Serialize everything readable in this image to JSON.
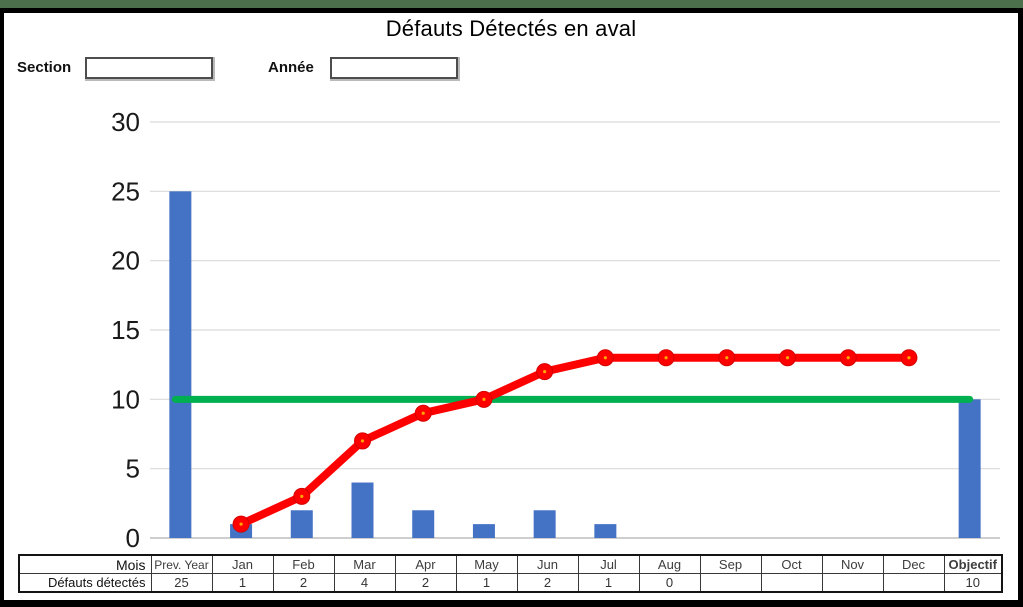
{
  "window": {
    "top_strip_color": "#4C6F4C",
    "frame_color": "#000000",
    "background": "#FFFFFF"
  },
  "title": "Défauts Détectés en aval",
  "controls": {
    "section_label": "Section",
    "section_value": "",
    "annee_label": "Année",
    "annee_value": ""
  },
  "chart_data": {
    "type": "combo",
    "title": "Défauts Détectés en aval",
    "categories": [
      "Prev. Year",
      "Jan",
      "Feb",
      "Mar",
      "Apr",
      "May",
      "Jun",
      "Jul",
      "Aug",
      "Sep",
      "Oct",
      "Nov",
      "Dec",
      "Objectif"
    ],
    "ylim": [
      0,
      30
    ],
    "ytick_step": 5,
    "grid": true,
    "legend": "none",
    "colors": {
      "bar": "#4472C4",
      "cumulative_line": "#FF0000",
      "marker_center": "#FFB700",
      "objective_line": "#00B050",
      "gridline": "#D9D9D9",
      "axis_text": "#1A1A1A"
    },
    "series": [
      {
        "name": "Défauts détectés",
        "type": "bar",
        "values": [
          25,
          1,
          2,
          4,
          2,
          1,
          2,
          1,
          0,
          null,
          null,
          null,
          null,
          10
        ]
      },
      {
        "name": "Cumul défauts",
        "type": "line",
        "categories": [
          "Jan",
          "Feb",
          "Mar",
          "Apr",
          "May",
          "Jun",
          "Jul",
          "Aug",
          "Sep",
          "Oct",
          "Nov",
          "Dec"
        ],
        "values": [
          1,
          3,
          7,
          9,
          10,
          12,
          13,
          13,
          13,
          13,
          13,
          13
        ]
      },
      {
        "name": "Objectif",
        "type": "flat_line",
        "value": 10
      }
    ]
  },
  "bottom_table": {
    "row1_label": "Mois",
    "row2_label": "Défauts détectés",
    "headers": [
      "Prev. Year",
      "Jan",
      "Feb",
      "Mar",
      "Apr",
      "May",
      "Jun",
      "Jul",
      "Aug",
      "Sep",
      "Oct",
      "Nov",
      "Dec",
      "Objectif"
    ],
    "values": [
      "25",
      "1",
      "2",
      "4",
      "2",
      "1",
      "2",
      "1",
      "0",
      "",
      "",
      "",
      "",
      "10"
    ]
  }
}
